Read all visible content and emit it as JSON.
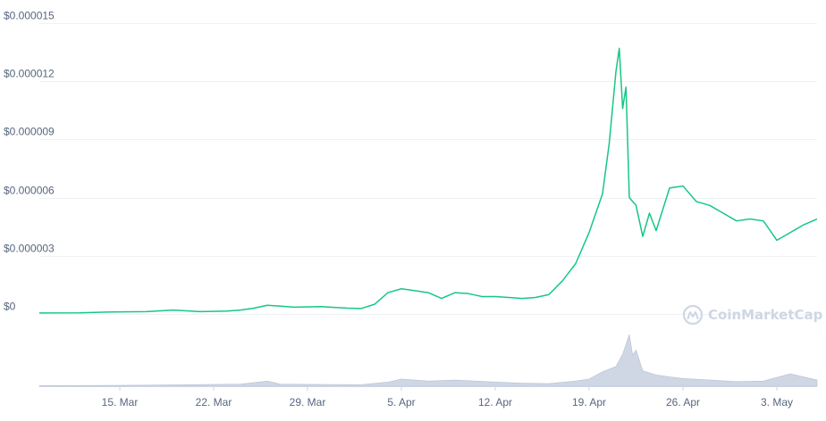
{
  "chart_data": {
    "type": "line",
    "title": "",
    "xlabel": "",
    "ylabel": "",
    "currency_prefix": "$",
    "x_start": "2021-03-09",
    "x_end": "2021-05-06",
    "ylim": [
      0,
      1.5e-05
    ],
    "yticks": [
      {
        "value": 0,
        "label": "$0"
      },
      {
        "value": 3e-06,
        "label": "$0.000003"
      },
      {
        "value": 6e-06,
        "label": "$0.000006"
      },
      {
        "value": 9e-06,
        "label": "$0.000009"
      },
      {
        "value": 1.2e-05,
        "label": "$0.000012"
      },
      {
        "value": 1.5e-05,
        "label": "$0.000015"
      }
    ],
    "xticks": [
      {
        "date": "2021-03-15",
        "label": "15. Mar"
      },
      {
        "date": "2021-03-22",
        "label": "22. Mar"
      },
      {
        "date": "2021-03-29",
        "label": "29. Mar"
      },
      {
        "date": "2021-04-05",
        "label": "5. Apr"
      },
      {
        "date": "2021-04-12",
        "label": "12. Apr"
      },
      {
        "date": "2021-04-19",
        "label": "19. Apr"
      },
      {
        "date": "2021-04-26",
        "label": "26. Apr"
      },
      {
        "date": "2021-05-03",
        "label": "3. May"
      }
    ],
    "series": [
      {
        "values": [
          [
            "2021-03-09",
            5e-08
          ],
          [
            "2021-03-12",
            6e-08
          ],
          [
            "2021-03-14",
            1e-07
          ],
          [
            "2021-03-17",
            1.2e-07
          ],
          [
            "2021-03-19",
            2e-07
          ],
          [
            "2021-03-21",
            1.2e-07
          ],
          [
            "2021-03-23",
            1.5e-07
          ],
          [
            "2021-03-24",
            2e-07
          ],
          [
            "2021-03-25",
            3e-07
          ],
          [
            "2021-03-26",
            4.5e-07
          ],
          [
            "2021-03-27",
            4e-07
          ],
          [
            "2021-03-28",
            3.5e-07
          ],
          [
            "2021-03-30",
            3.8e-07
          ],
          [
            "2021-04-01",
            3e-07
          ],
          [
            "2021-04-02",
            2.8e-07
          ],
          [
            "2021-04-03",
            5e-07
          ],
          [
            "2021-04-04",
            1.1e-06
          ],
          [
            "2021-04-05",
            1.3e-06
          ],
          [
            "2021-04-06",
            1.2e-06
          ],
          [
            "2021-04-07",
            1.1e-06
          ],
          [
            "2021-04-08",
            8e-07
          ],
          [
            "2021-04-09",
            1.1e-06
          ],
          [
            "2021-04-10",
            1.05e-06
          ],
          [
            "2021-04-11",
            9e-07
          ],
          [
            "2021-04-12",
            9e-07
          ],
          [
            "2021-04-13",
            8.5e-07
          ],
          [
            "2021-04-14",
            8e-07
          ],
          [
            "2021-04-15",
            8.5e-07
          ],
          [
            "2021-04-16",
            1e-06
          ],
          [
            "2021-04-17",
            1.7e-06
          ],
          [
            "2021-04-18",
            2.6e-06
          ],
          [
            "2021-04-19",
            4.2e-06
          ],
          [
            "2021-04-20",
            6.2e-06
          ],
          [
            "2021-04-20T12:00",
            8.8e-06
          ],
          [
            "2021-04-21",
            1.25e-05
          ],
          [
            "2021-04-21T06:00",
            1.37e-05
          ],
          [
            "2021-04-21T12:00",
            1.06e-05
          ],
          [
            "2021-04-21T18:00",
            1.17e-05
          ],
          [
            "2021-04-22",
            6e-06
          ],
          [
            "2021-04-22T12:00",
            5.6e-06
          ],
          [
            "2021-04-23",
            4e-06
          ],
          [
            "2021-04-23T12:00",
            5.2e-06
          ],
          [
            "2021-04-24",
            4.3e-06
          ],
          [
            "2021-04-25",
            6.5e-06
          ],
          [
            "2021-04-26",
            6.6e-06
          ],
          [
            "2021-04-27",
            5.8e-06
          ],
          [
            "2021-04-28",
            5.6e-06
          ],
          [
            "2021-04-29",
            5.2e-06
          ],
          [
            "2021-04-30",
            4.8e-06
          ],
          [
            "2021-05-01",
            4.9e-06
          ],
          [
            "2021-05-02",
            4.8e-06
          ],
          [
            "2021-05-03",
            3.8e-06
          ],
          [
            "2021-05-04",
            4.2e-06
          ],
          [
            "2021-05-05",
            4.6e-06
          ],
          [
            "2021-05-06",
            4.9e-06
          ]
        ]
      }
    ],
    "volume": {
      "values": [
        [
          "2021-03-09",
          0.01
        ],
        [
          "2021-03-17",
          0.02
        ],
        [
          "2021-03-24",
          0.04
        ],
        [
          "2021-03-26",
          0.1
        ],
        [
          "2021-03-27",
          0.04
        ],
        [
          "2021-04-02",
          0.03
        ],
        [
          "2021-04-04",
          0.08
        ],
        [
          "2021-04-05",
          0.14
        ],
        [
          "2021-04-07",
          0.1
        ],
        [
          "2021-04-09",
          0.12
        ],
        [
          "2021-04-12",
          0.08
        ],
        [
          "2021-04-14",
          0.06
        ],
        [
          "2021-04-16",
          0.05
        ],
        [
          "2021-04-18",
          0.1
        ],
        [
          "2021-04-19",
          0.14
        ],
        [
          "2021-04-20",
          0.28
        ],
        [
          "2021-04-21",
          0.38
        ],
        [
          "2021-04-21T12:00",
          0.62
        ],
        [
          "2021-04-22",
          1.0
        ],
        [
          "2021-04-22T06:00",
          0.6
        ],
        [
          "2021-04-22T12:00",
          0.7
        ],
        [
          "2021-04-23",
          0.3
        ],
        [
          "2021-04-24",
          0.22
        ],
        [
          "2021-04-25",
          0.18
        ],
        [
          "2021-04-26",
          0.15
        ],
        [
          "2021-04-28",
          0.12
        ],
        [
          "2021-04-30",
          0.09
        ],
        [
          "2021-05-02",
          0.1
        ],
        [
          "2021-05-04",
          0.24
        ],
        [
          "2021-05-05",
          0.18
        ],
        [
          "2021-05-06",
          0.12
        ]
      ]
    },
    "grid": true,
    "legend": "none",
    "colors": {
      "line": "#16c784",
      "volume": "#cfd6e4",
      "grid": "#eff2f5",
      "text": "#58667e",
      "watermark": "#cfd6e4"
    }
  },
  "watermark": {
    "text": "CoinMarketCap",
    "icon": "coinmarketcap-logo-icon"
  }
}
